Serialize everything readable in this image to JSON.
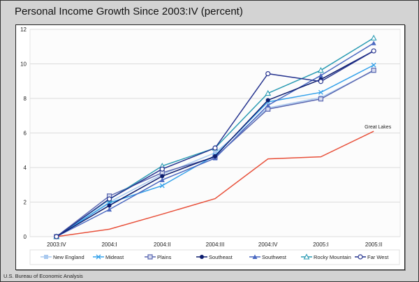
{
  "title": "Personal Income Growth Since 2003:IV (percent)",
  "footer": "U.S. Bureau of Economic Analysis",
  "chart_data": {
    "type": "line",
    "title": "Personal Income Growth Since 2003:IV (percent)",
    "xlabel": "",
    "ylabel": "",
    "categories": [
      "2003:IV",
      "2004:I",
      "2004:II",
      "2004:III",
      "2004:IV",
      "2005:I",
      "2005:II"
    ],
    "ylim": [
      0,
      12
    ],
    "yticks": [
      0,
      2,
      4,
      6,
      8,
      10,
      12
    ],
    "grid": true,
    "legend": "bottom",
    "series": [
      {
        "name": "New England",
        "color": "#a9c9ef",
        "marker": "square-filled",
        "values": [
          0,
          2.0,
          3.6,
          4.85,
          7.45,
          8.05,
          9.6
        ]
      },
      {
        "name": "Mideast",
        "color": "#35a2ea",
        "marker": "x",
        "values": [
          0,
          1.95,
          2.95,
          4.7,
          7.8,
          8.35,
          9.93
        ]
      },
      {
        "name": "Plains",
        "color": "#5a67b0",
        "marker": "square-open",
        "values": [
          0,
          2.35,
          3.7,
          4.6,
          7.38,
          7.97,
          9.63
        ]
      },
      {
        "name": "Southeast",
        "color": "#0d1d6e",
        "marker": "circle-filled",
        "values": [
          0,
          1.8,
          3.5,
          4.65,
          7.9,
          9.1,
          10.75
        ]
      },
      {
        "name": "Southwest",
        "color": "#4b69c1",
        "marker": "triangle-filled",
        "values": [
          0,
          1.57,
          3.28,
          4.54,
          7.6,
          9.33,
          11.2
        ]
      },
      {
        "name": "Rocky Mountain",
        "color": "#2a9bb3",
        "marker": "triangle-open",
        "values": [
          0,
          2.15,
          4.09,
          5.13,
          8.3,
          9.63,
          11.5
        ]
      },
      {
        "name": "Far West",
        "color": "#26348f",
        "marker": "circle-open",
        "values": [
          0,
          2.18,
          3.91,
          5.13,
          9.43,
          8.98,
          10.75
        ]
      },
      {
        "name": "Great Lakes",
        "color": "#e8503a",
        "marker": "none",
        "label": "Great Lakes",
        "values": [
          0,
          0.43,
          1.3,
          2.2,
          4.5,
          4.62,
          6.1
        ]
      }
    ]
  }
}
